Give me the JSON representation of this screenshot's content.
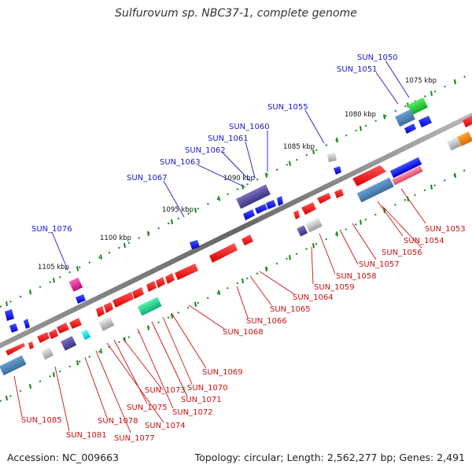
{
  "title": "Sulfurovum sp. NBC37-1, complete genome",
  "accession_text": "Accession: NC_009663",
  "summary_text": "Topology: circular; Length: 2,562,277 bp; Genes: 2,491",
  "kbp_ticks": [
    "1075 kbp",
    "1080 kbp",
    "1085 kbp",
    "1090 kbp",
    "1095 kbp",
    "1100 kbp",
    "1105 kbp"
  ],
  "gene_labels_top": [
    "SUN_1050",
    "SUN_1051",
    "SUN_1055",
    "SUN_1060",
    "SUN_1061",
    "SUN_1062",
    "SUN_1063",
    "SUN_1067",
    "SUN_1076"
  ],
  "gene_labels_bottom": [
    "SUN_1053",
    "SUN_1054",
    "SUN_1056",
    "SUN_1057",
    "SUN_1058",
    "SUN_1059",
    "SUN_1064",
    "SUN_1065",
    "SUN_1066",
    "SUN_1068",
    "SUN_1069",
    "SUN_1070",
    "SUN_1071",
    "SUN_1072",
    "SUN_1073",
    "SUN_1074",
    "SUN_1075",
    "SUN_1077",
    "SUN_1078",
    "SUN_1081",
    "SUN_1085"
  ],
  "colors": {
    "forward_gene": "#ff1111",
    "reverse_gene": "#1111ee",
    "backbone": "#777777",
    "tick": "#118811",
    "label_top": "#1a1acc",
    "label_bottom": "#cc1111"
  }
}
